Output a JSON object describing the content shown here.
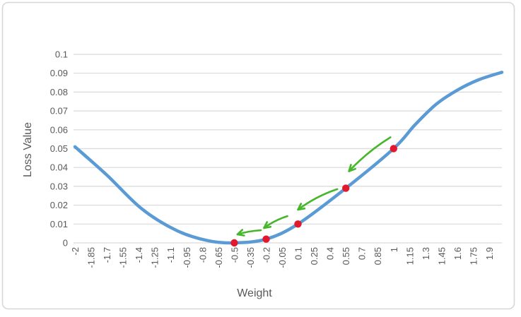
{
  "chart_data": {
    "type": "line",
    "title": "",
    "xlabel": "Weight",
    "ylabel": "Loss Value",
    "grid": "horizontal",
    "legend": "none",
    "xlim": [
      -2,
      2.02
    ],
    "ylim": [
      0,
      0.1
    ],
    "x_tick_start": -2,
    "x_tick_step": 0.15,
    "x_tick_labels": [
      "-2",
      "-1.85",
      "-1.7",
      "-1.55",
      "-1.4",
      "-1.25",
      "-1.1",
      "-0.95",
      "-0.8",
      "-0.65",
      "-0.5",
      "-0.35",
      "-0.2",
      "-0.05",
      "0.1",
      "0.25",
      "0.4",
      "0.55",
      "0.7",
      "0.85",
      "1",
      "1.15",
      "1.3",
      "1.45",
      "1.6",
      "1.75",
      "1.9"
    ],
    "y_tick_step": 0.01,
    "y_tick_labels": [
      "0",
      "0.01",
      "0.02",
      "0.03",
      "0.04",
      "0.05",
      "0.06",
      "0.07",
      "0.08",
      "0.09",
      "0.1"
    ],
    "colors": {
      "curve": "#5B9BD5",
      "points": "#E2192C",
      "arrows": "#46B62B",
      "text": "#595959",
      "gridline": "#D9D9D9",
      "border": "#D7D7D7",
      "background": "#FFFFFF"
    },
    "series": [
      {
        "name": "loss-curve",
        "type": "line",
        "points": [
          [
            -2,
            0.051
          ],
          [
            -1.7,
            0.036
          ],
          [
            -1.37,
            0.018
          ],
          [
            -1.04,
            0.0065
          ],
          [
            -0.75,
            0.0012
          ],
          [
            -0.5,
            0
          ],
          [
            -0.2,
            0.002
          ],
          [
            0.1,
            0.01
          ],
          [
            0.55,
            0.029
          ],
          [
            1,
            0.05
          ],
          [
            1.2,
            0.0625
          ],
          [
            1.4,
            0.0735
          ],
          [
            1.6,
            0.081
          ],
          [
            1.8,
            0.0865
          ],
          [
            2.02,
            0.0905
          ]
        ]
      },
      {
        "name": "gradient-descent-steps",
        "type": "scatter",
        "points": [
          [
            1,
            0.05
          ],
          [
            0.55,
            0.029
          ],
          [
            0.1,
            0.01
          ],
          [
            -0.2,
            0.002
          ],
          [
            -0.5,
            0
          ]
        ]
      }
    ],
    "annotations": {
      "arrows": [
        {
          "from": [
            0.97,
            0.056
          ],
          "to": [
            0.58,
            0.038
          ],
          "bow": 5
        },
        {
          "from": [
            0.47,
            0.0285
          ],
          "to": [
            0.1,
            0.0176
          ],
          "bow": 5
        },
        {
          "from": [
            0.0,
            0.0142
          ],
          "to": [
            -0.22,
            0.0079
          ],
          "bow": 3
        },
        {
          "from": [
            -0.25,
            0.0067
          ],
          "to": [
            -0.47,
            0.0045
          ],
          "bow": 2
        }
      ]
    }
  }
}
